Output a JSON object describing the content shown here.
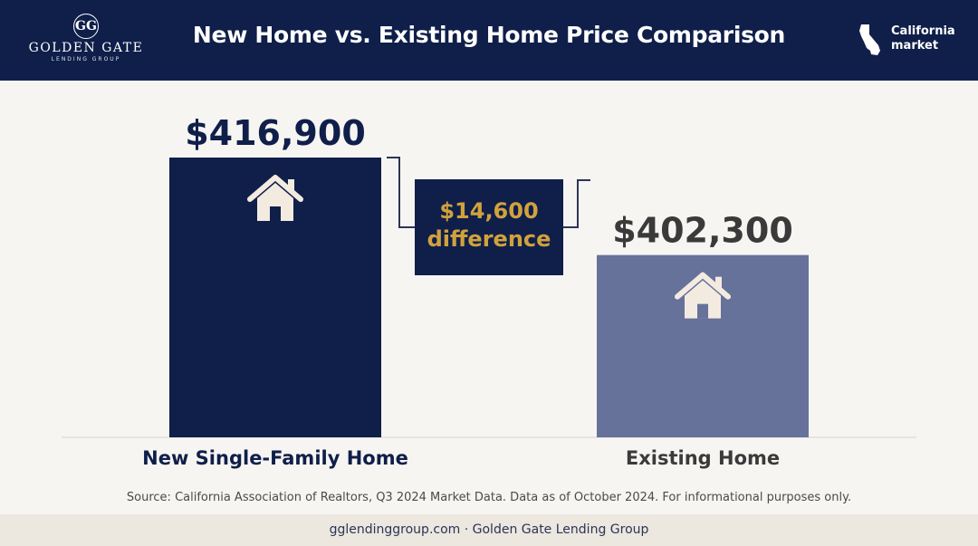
{
  "header": {
    "logo_mark": "GG",
    "logo_name": "GOLDEN GATE",
    "logo_sub": "LENDING GROUP",
    "title": "New Home vs. Existing Home Price Comparison",
    "region_line1": "California",
    "region_line2": "market",
    "region_icon": "california-state-icon"
  },
  "chart_data": {
    "type": "bar",
    "categories": [
      "New Single-Family Home",
      "Existing Home"
    ],
    "values": [
      416900,
      402300
    ],
    "value_labels": [
      "$416,900",
      "$402,300"
    ],
    "colors": [
      "#0f1f4a",
      "#66729a"
    ],
    "value_label_colors": [
      "#0f1f4a",
      "#3a3a3a"
    ],
    "category_label_colors": [
      "#0f1f4a",
      "#3a3a3a"
    ],
    "bar_icon": "house-icon",
    "ylim": [
      0,
      416900
    ],
    "grid": false,
    "annotation": {
      "line1": "$14,600",
      "line2": "difference",
      "value": 14600,
      "color": "#d1a23c"
    }
  },
  "source": "Source: California Association of Realtors, Q3 2024 Market Data. Data as of October 2024. For informational purposes only.",
  "footer": "gglendinggroup.com · Golden Gate Lending Group"
}
